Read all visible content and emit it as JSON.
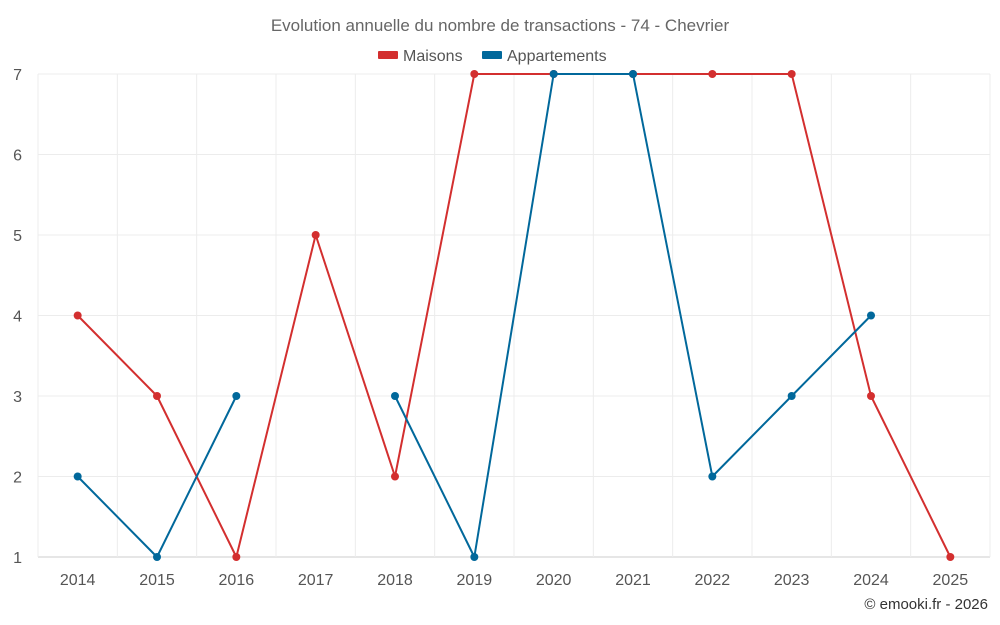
{
  "chart_data": {
    "type": "line",
    "title": "Evolution annuelle du nombre de transactions - 74 - Chevrier",
    "categories": [
      "2014",
      "2015",
      "2016",
      "2017",
      "2018",
      "2019",
      "2020",
      "2021",
      "2022",
      "2023",
      "2024",
      "2025"
    ],
    "ylim": [
      1,
      7
    ],
    "yticks": [
      1,
      2,
      3,
      4,
      5,
      6,
      7
    ],
    "grid": true,
    "legend_position": "top-center",
    "series": [
      {
        "name": "Maisons",
        "color": "#d32f2f",
        "values": [
          4,
          3,
          1,
          5,
          2,
          7,
          7,
          7,
          7,
          7,
          3,
          1
        ]
      },
      {
        "name": "Appartements",
        "color": "#01689b",
        "values": [
          2,
          1,
          3,
          null,
          3,
          1,
          7,
          7,
          2,
          3,
          4,
          null
        ]
      }
    ],
    "credit": "© emooki.fr - 2026"
  }
}
